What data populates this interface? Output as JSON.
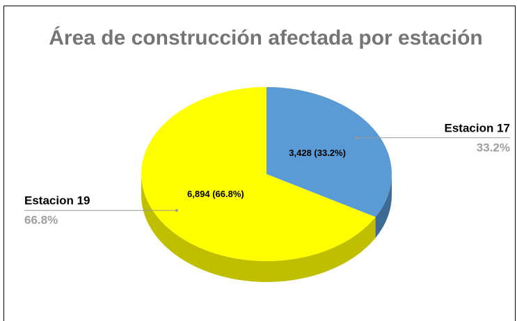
{
  "chart_data": {
    "type": "pie3d",
    "title": "Área de construcción afectada por estación",
    "categories": [
      "Estacion 17",
      "Estacion 19"
    ],
    "values": [
      3428,
      6894
    ],
    "value_labels": [
      "3,428 (33.2%)",
      "6,894 (66.8%)"
    ],
    "percent_labels": [
      "33.2%",
      "66.8%"
    ],
    "colors": [
      "#5b9bd5",
      "#ffff00"
    ],
    "side_colors": [
      "#3e6b94",
      "#bfbf00"
    ]
  }
}
